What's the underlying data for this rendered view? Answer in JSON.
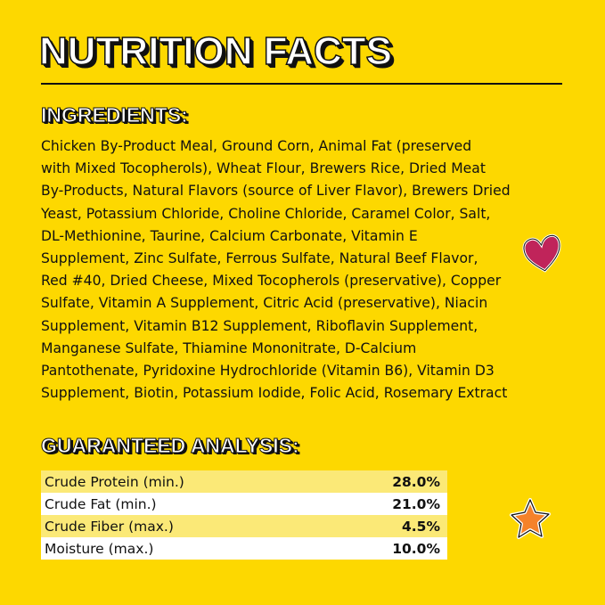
{
  "title": "NUTRITION FACTS",
  "ingredients": {
    "heading": "INGREDIENTS:",
    "lines": [
      "Chicken By-Product Meal, Ground Corn, Animal Fat (preserved",
      "with Mixed Tocopherols), Wheat Flour, Brewers Rice, Dried Meat",
      "By-Products, Natural Flavors (source of Liver Flavor), Brewers Dried",
      "Yeast, Potassium Chloride, Choline Chloride, Caramel Color, Salt,",
      "DL-Methionine, Taurine, Calcium Carbonate, Vitamin E",
      "Supplement, Zinc Sulfate, Ferrous Sulfate, Natural Beef Flavor,",
      "Red #40, Dried Cheese, Mixed Tocopherols (preservative), Copper",
      "Sulfate, Vitamin A Supplement, Citric Acid (preservative), Niacin",
      "Supplement, Vitamin B12 Supplement, Riboflavin Supplement,",
      "Manganese Sulfate, Thiamine Mononitrate, D-Calcium",
      "Pantothenate, Pyridoxine Hydrochloride (Vitamin B6), Vitamin D3",
      "Supplement, Biotin, Potassium Iodide, Folic Acid, Rosemary Extract"
    ]
  },
  "analysis": {
    "heading": "GUARANTEED ANALYSIS:",
    "rows": [
      {
        "label": "Crude Protein (min.)",
        "value": "28.0%"
      },
      {
        "label": "Crude Fat (min.)",
        "value": "21.0%"
      },
      {
        "label": "Crude Fiber (max.)",
        "value": "4.5%"
      },
      {
        "label": "Moisture (max.)",
        "value": "10.0%"
      }
    ]
  },
  "decorations": {
    "heart": "heart-icon",
    "star": "star-icon",
    "heart_color": "#c0245a",
    "star_color": "#f5822a",
    "background": "#fdd800"
  }
}
